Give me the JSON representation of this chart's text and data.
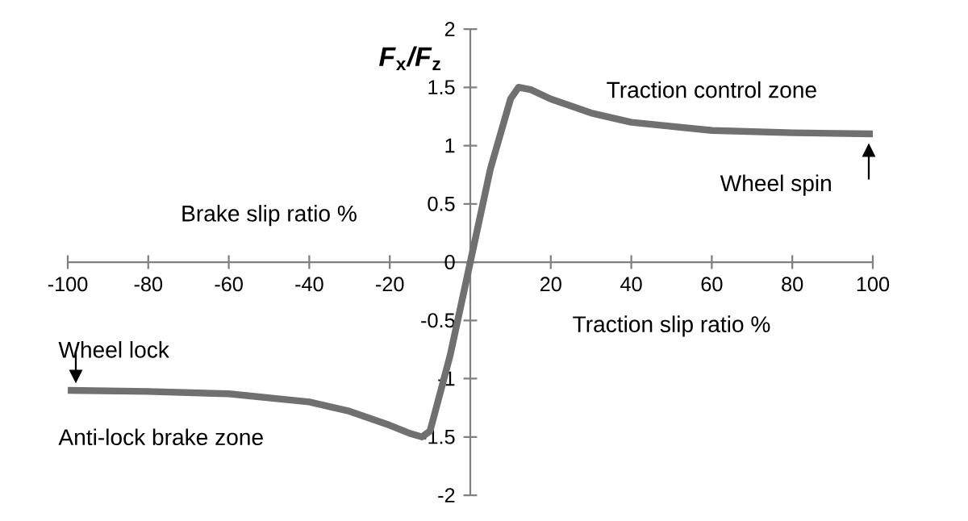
{
  "chart_data": {
    "type": "line",
    "ylabel": "*F*$_{x}$*/F*$_{z}$",
    "xlabel": "Traction slip ratio %",
    "annotations": [
      "Brake slip ratio %",
      "Traction control zone",
      "Wheel spin",
      "Wheel lock",
      "Anti-lock brake zone"
    ],
    "x": [
      -100,
      -80,
      -60,
      -40,
      -30,
      -20,
      -15,
      -12,
      -10,
      -5,
      0,
      5,
      10,
      12,
      15,
      20,
      30,
      40,
      60,
      80,
      100
    ],
    "series": [
      {
        "color": "#707070",
        "values": [
          -1.1,
          -1.11,
          -1.13,
          -1.2,
          -1.28,
          -1.4,
          -1.47,
          -1.5,
          -1.45,
          -0.8,
          0,
          0.8,
          1.4,
          1.5,
          1.48,
          1.4,
          1.28,
          1.2,
          1.13,
          1.11,
          1.1
        ]
      }
    ],
    "xlim": [
      -100,
      100
    ],
    "ylim": [
      -2,
      2
    ],
    "xticks": [
      -100,
      -80,
      -60,
      -40,
      -20,
      {
        "value": 0,
        "label": null
      },
      20,
      40,
      60,
      80,
      100
    ],
    "yticks": [
      -2,
      -1.5,
      -1,
      -0.5,
      0,
      0.5,
      1,
      1.5,
      2
    ],
    "grid": false,
    "marker": "none",
    "line_style": "solid"
  }
}
